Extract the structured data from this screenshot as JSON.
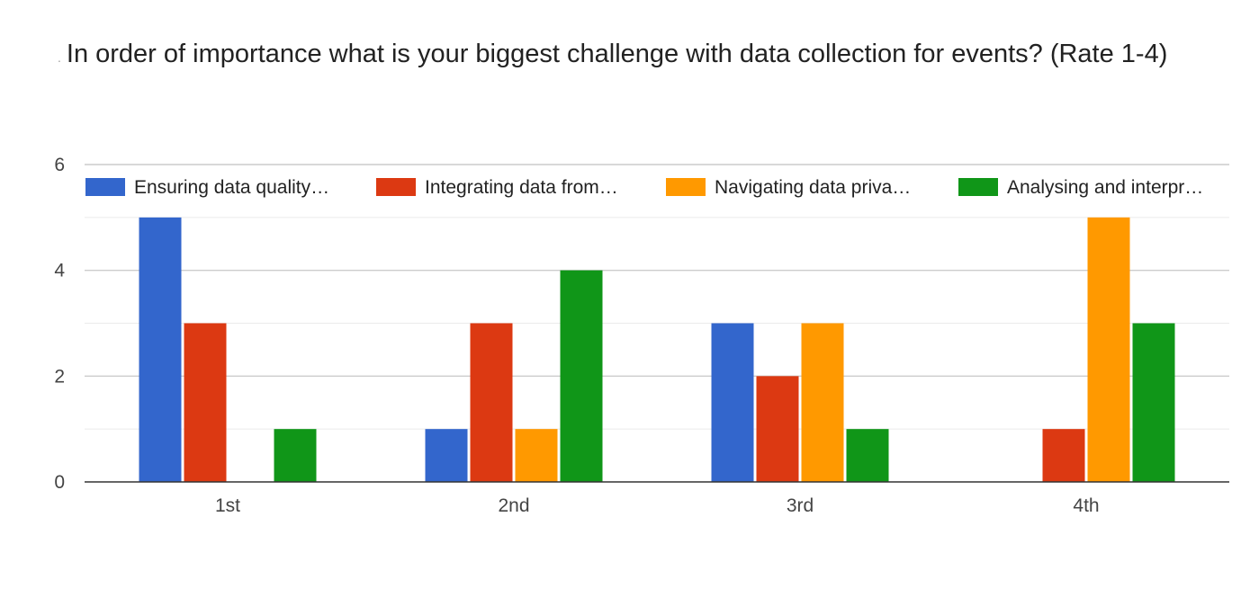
{
  "chart_data": {
    "type": "bar",
    "title": "In order of importance what is your biggest challenge with data collection for events? (Rate 1-4)",
    "categories": [
      "1st",
      "2nd",
      "3rd",
      "4th"
    ],
    "series": [
      {
        "name": "Ensuring data quality…",
        "color": "#3366cc",
        "values": [
          5,
          1,
          3,
          0
        ]
      },
      {
        "name": "Integrating data from…",
        "color": "#dc3912",
        "values": [
          3,
          3,
          2,
          1
        ]
      },
      {
        "name": "Navigating data priva…",
        "color": "#ff9900",
        "values": [
          0,
          1,
          3,
          5
        ]
      },
      {
        "name": "Analysing and interpr…",
        "color": "#109618",
        "values": [
          1,
          4,
          1,
          3
        ]
      }
    ],
    "y_ticks": [
      "0",
      "2",
      "4",
      "6"
    ],
    "ylim": [
      0,
      6
    ],
    "xlabel": "",
    "ylabel": "",
    "grid": true,
    "legend_position": "top"
  }
}
